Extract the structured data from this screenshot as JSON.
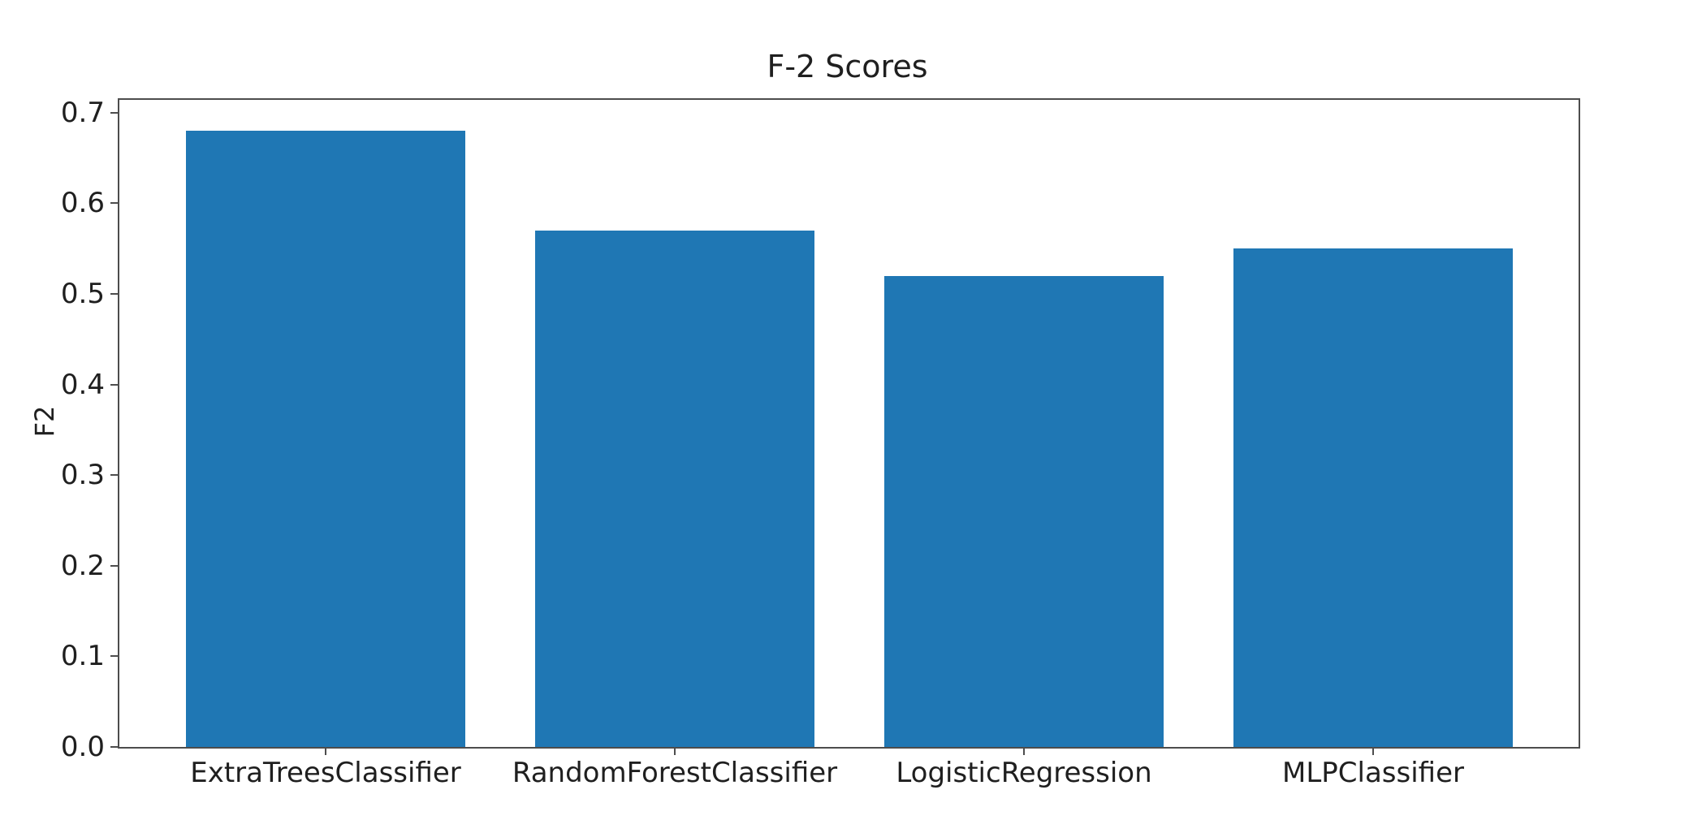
{
  "chart_data": {
    "type": "bar",
    "title": "F-2 Scores",
    "xlabel": "",
    "ylabel": "F2",
    "categories": [
      "ExtraTreesClassifier",
      "RandomForestClassifier",
      "LogisticRegression",
      "MLPClassifier"
    ],
    "values": [
      0.68,
      0.57,
      0.52,
      0.55
    ],
    "yticks": [
      "0.0",
      "0.1",
      "0.2",
      "0.3",
      "0.4",
      "0.5",
      "0.6",
      "0.7"
    ],
    "ylim": [
      0,
      0.714
    ],
    "grid": false,
    "legend": "none",
    "bar_color": "#1f77b4",
    "spine_color": "#4d4d4d",
    "text_color": "#1f1f1f",
    "background_color": "#ffffff"
  }
}
